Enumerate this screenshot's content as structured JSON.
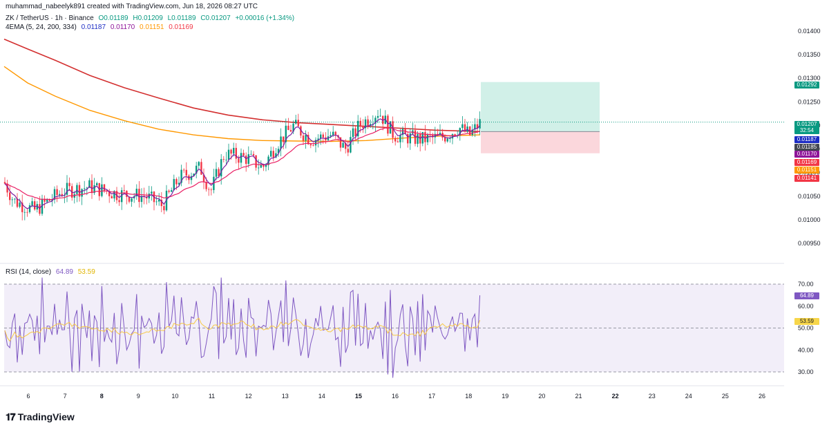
{
  "header": {
    "creator_line": "muhammad_nabeelyk891 created with TradingView.com, Jun 18, 2026 08:27 UTC",
    "symbol": "ZK / TetherUS · 1h · Binance",
    "ohlc": {
      "open": "O0.01189",
      "high": "H0.01209",
      "low": "L0.01189",
      "close": "C0.01207",
      "change": "+0.00016 (+1.34%)"
    },
    "ema_title": "4EMA (5, 24, 200, 334)",
    "ema_values": [
      "0.01187",
      "0.01170",
      "0.01151",
      "0.01169"
    ],
    "rsi_title": "RSI (14, close)",
    "rsi_values": [
      "64.89",
      "53.59"
    ]
  },
  "price_axis": {
    "ticks": [
      "0.01400",
      "0.01350",
      "0.01300",
      "0.01250",
      "0.01200",
      "0.01150",
      "0.01100",
      "0.01050",
      "0.01000",
      "0.00950"
    ],
    "tags": [
      {
        "text": "0.01292",
        "color": "#089981"
      },
      {
        "text": "0.01207",
        "color": "#089981"
      },
      {
        "text": "32:54",
        "color": "#089981"
      },
      {
        "text": "0.01187",
        "color": "#1c2cc4"
      },
      {
        "text": "0.01185",
        "color": "#434651"
      },
      {
        "text": "0.01170",
        "color": "#8e1599"
      },
      {
        "text": "0.01169",
        "color": "#f23645"
      },
      {
        "text": "0.01151",
        "color": "#ff9800"
      },
      {
        "text": "0.01141",
        "color": "#f23645"
      }
    ]
  },
  "rsi_axis": {
    "ticks": [
      "70.00",
      "60.00",
      "50.00",
      "40.00",
      "30.00"
    ],
    "tags": [
      {
        "text": "64.89",
        "color": "#7e57c2"
      },
      {
        "text": "53.59",
        "color": "#f7d64a"
      }
    ]
  },
  "time_axis": {
    "labels": [
      "6",
      "7",
      "8",
      "9",
      "10",
      "11",
      "12",
      "13",
      "14",
      "15",
      "16",
      "17",
      "18",
      "19",
      "20",
      "21",
      "22",
      "23",
      "24",
      "25",
      "26"
    ],
    "bold": [
      "8",
      "15",
      "22"
    ]
  },
  "colors": {
    "up": "#089981",
    "down": "#f23645",
    "ema5": "#7b1fa2",
    "ema24": "#e91e63",
    "ema200": "#d32f2f",
    "ema334": "#ff9800",
    "rsi": "#7e57c2",
    "rsi_ma": "#f7c844",
    "profit_zone": "#d1f0e8",
    "loss_zone": "#fbd7dc"
  },
  "brand": "TradingView"
}
